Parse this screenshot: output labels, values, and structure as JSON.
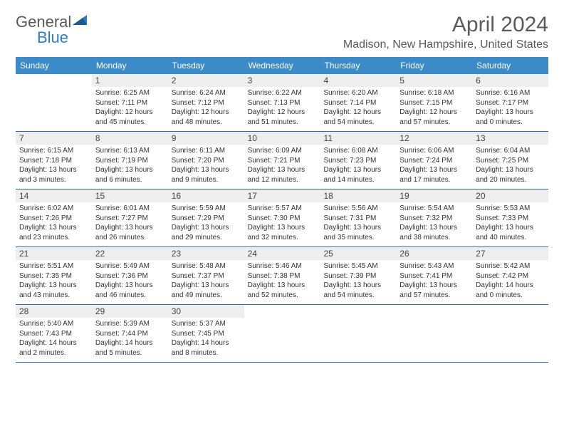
{
  "brand": {
    "name1": "General",
    "name2": "Blue"
  },
  "title": "April 2024",
  "location": "Madison, New Hampshire, United States",
  "colors": {
    "header_bg": "#3b8bc9",
    "row_border": "#2e6da4",
    "shade": "#eeeeee",
    "text": "#5a5a5a"
  },
  "day_headers": [
    "Sunday",
    "Monday",
    "Tuesday",
    "Wednesday",
    "Thursday",
    "Friday",
    "Saturday"
  ],
  "weeks": [
    [
      {
        "blank": true
      },
      {
        "day": "1",
        "sunrise": "Sunrise: 6:25 AM",
        "sunset": "Sunset: 7:11 PM",
        "dl1": "Daylight: 12 hours",
        "dl2": "and 45 minutes."
      },
      {
        "day": "2",
        "sunrise": "Sunrise: 6:24 AM",
        "sunset": "Sunset: 7:12 PM",
        "dl1": "Daylight: 12 hours",
        "dl2": "and 48 minutes."
      },
      {
        "day": "3",
        "sunrise": "Sunrise: 6:22 AM",
        "sunset": "Sunset: 7:13 PM",
        "dl1": "Daylight: 12 hours",
        "dl2": "and 51 minutes."
      },
      {
        "day": "4",
        "sunrise": "Sunrise: 6:20 AM",
        "sunset": "Sunset: 7:14 PM",
        "dl1": "Daylight: 12 hours",
        "dl2": "and 54 minutes."
      },
      {
        "day": "5",
        "sunrise": "Sunrise: 6:18 AM",
        "sunset": "Sunset: 7:15 PM",
        "dl1": "Daylight: 12 hours",
        "dl2": "and 57 minutes."
      },
      {
        "day": "6",
        "sunrise": "Sunrise: 6:16 AM",
        "sunset": "Sunset: 7:17 PM",
        "dl1": "Daylight: 13 hours",
        "dl2": "and 0 minutes."
      }
    ],
    [
      {
        "day": "7",
        "sunrise": "Sunrise: 6:15 AM",
        "sunset": "Sunset: 7:18 PM",
        "dl1": "Daylight: 13 hours",
        "dl2": "and 3 minutes."
      },
      {
        "day": "8",
        "sunrise": "Sunrise: 6:13 AM",
        "sunset": "Sunset: 7:19 PM",
        "dl1": "Daylight: 13 hours",
        "dl2": "and 6 minutes."
      },
      {
        "day": "9",
        "sunrise": "Sunrise: 6:11 AM",
        "sunset": "Sunset: 7:20 PM",
        "dl1": "Daylight: 13 hours",
        "dl2": "and 9 minutes."
      },
      {
        "day": "10",
        "sunrise": "Sunrise: 6:09 AM",
        "sunset": "Sunset: 7:21 PM",
        "dl1": "Daylight: 13 hours",
        "dl2": "and 12 minutes."
      },
      {
        "day": "11",
        "sunrise": "Sunrise: 6:08 AM",
        "sunset": "Sunset: 7:23 PM",
        "dl1": "Daylight: 13 hours",
        "dl2": "and 14 minutes."
      },
      {
        "day": "12",
        "sunrise": "Sunrise: 6:06 AM",
        "sunset": "Sunset: 7:24 PM",
        "dl1": "Daylight: 13 hours",
        "dl2": "and 17 minutes."
      },
      {
        "day": "13",
        "sunrise": "Sunrise: 6:04 AM",
        "sunset": "Sunset: 7:25 PM",
        "dl1": "Daylight: 13 hours",
        "dl2": "and 20 minutes."
      }
    ],
    [
      {
        "day": "14",
        "sunrise": "Sunrise: 6:02 AM",
        "sunset": "Sunset: 7:26 PM",
        "dl1": "Daylight: 13 hours",
        "dl2": "and 23 minutes."
      },
      {
        "day": "15",
        "sunrise": "Sunrise: 6:01 AM",
        "sunset": "Sunset: 7:27 PM",
        "dl1": "Daylight: 13 hours",
        "dl2": "and 26 minutes."
      },
      {
        "day": "16",
        "sunrise": "Sunrise: 5:59 AM",
        "sunset": "Sunset: 7:29 PM",
        "dl1": "Daylight: 13 hours",
        "dl2": "and 29 minutes."
      },
      {
        "day": "17",
        "sunrise": "Sunrise: 5:57 AM",
        "sunset": "Sunset: 7:30 PM",
        "dl1": "Daylight: 13 hours",
        "dl2": "and 32 minutes."
      },
      {
        "day": "18",
        "sunrise": "Sunrise: 5:56 AM",
        "sunset": "Sunset: 7:31 PM",
        "dl1": "Daylight: 13 hours",
        "dl2": "and 35 minutes."
      },
      {
        "day": "19",
        "sunrise": "Sunrise: 5:54 AM",
        "sunset": "Sunset: 7:32 PM",
        "dl1": "Daylight: 13 hours",
        "dl2": "and 38 minutes."
      },
      {
        "day": "20",
        "sunrise": "Sunrise: 5:53 AM",
        "sunset": "Sunset: 7:33 PM",
        "dl1": "Daylight: 13 hours",
        "dl2": "and 40 minutes."
      }
    ],
    [
      {
        "day": "21",
        "sunrise": "Sunrise: 5:51 AM",
        "sunset": "Sunset: 7:35 PM",
        "dl1": "Daylight: 13 hours",
        "dl2": "and 43 minutes."
      },
      {
        "day": "22",
        "sunrise": "Sunrise: 5:49 AM",
        "sunset": "Sunset: 7:36 PM",
        "dl1": "Daylight: 13 hours",
        "dl2": "and 46 minutes."
      },
      {
        "day": "23",
        "sunrise": "Sunrise: 5:48 AM",
        "sunset": "Sunset: 7:37 PM",
        "dl1": "Daylight: 13 hours",
        "dl2": "and 49 minutes."
      },
      {
        "day": "24",
        "sunrise": "Sunrise: 5:46 AM",
        "sunset": "Sunset: 7:38 PM",
        "dl1": "Daylight: 13 hours",
        "dl2": "and 52 minutes."
      },
      {
        "day": "25",
        "sunrise": "Sunrise: 5:45 AM",
        "sunset": "Sunset: 7:39 PM",
        "dl1": "Daylight: 13 hours",
        "dl2": "and 54 minutes."
      },
      {
        "day": "26",
        "sunrise": "Sunrise: 5:43 AM",
        "sunset": "Sunset: 7:41 PM",
        "dl1": "Daylight: 13 hours",
        "dl2": "and 57 minutes."
      },
      {
        "day": "27",
        "sunrise": "Sunrise: 5:42 AM",
        "sunset": "Sunset: 7:42 PM",
        "dl1": "Daylight: 14 hours",
        "dl2": "and 0 minutes."
      }
    ],
    [
      {
        "day": "28",
        "sunrise": "Sunrise: 5:40 AM",
        "sunset": "Sunset: 7:43 PM",
        "dl1": "Daylight: 14 hours",
        "dl2": "and 2 minutes."
      },
      {
        "day": "29",
        "sunrise": "Sunrise: 5:39 AM",
        "sunset": "Sunset: 7:44 PM",
        "dl1": "Daylight: 14 hours",
        "dl2": "and 5 minutes."
      },
      {
        "day": "30",
        "sunrise": "Sunrise: 5:37 AM",
        "sunset": "Sunset: 7:45 PM",
        "dl1": "Daylight: 14 hours",
        "dl2": "and 8 minutes."
      },
      {
        "blank": true
      },
      {
        "blank": true
      },
      {
        "blank": true
      },
      {
        "blank": true
      }
    ]
  ]
}
